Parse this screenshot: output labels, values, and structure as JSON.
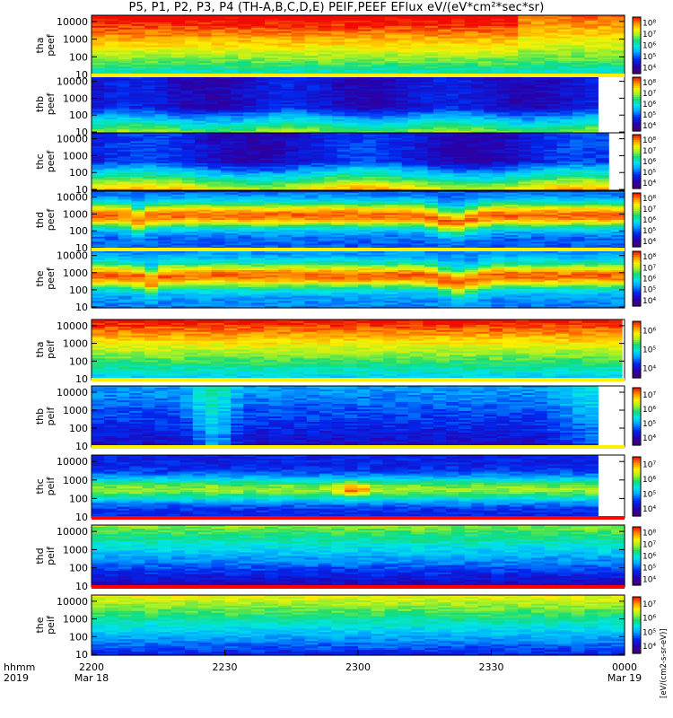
{
  "title": "P5, P1, P2, P3, P4 (TH-A,B,C,D,E) PEIF,PEEF EFlux eV/(eV*cm²*sec*sr)",
  "colorbar_unit_label": "[eV/(cm2-s-sr-eV)]",
  "chart_data": {
    "type": "heatmap",
    "x_axis": {
      "row_labels": [
        "hhmm",
        "2019"
      ],
      "ticks": [
        {
          "time": "2200",
          "date": "Mar 18"
        },
        {
          "time": "2230",
          "date": ""
        },
        {
          "time": "2300",
          "date": ""
        },
        {
          "time": "2330",
          "date": ""
        },
        {
          "time": "0000",
          "date": "Mar 19"
        }
      ],
      "range_utc": [
        "2019-03-18 22:00",
        "2019-03-19 00:00"
      ]
    },
    "y_scale": "log",
    "y_ticks": [
      "10",
      "100",
      "1000",
      "10000"
    ],
    "color_scale": "rainbow (purple-blue-cyan-green-yellow-red), log",
    "panels": [
      {
        "label": "tha\npeef",
        "cbar_ticks": [
          "10⁴",
          "10⁵",
          "10⁶",
          "10⁷",
          "10⁸"
        ],
        "data_end": 1.0,
        "pattern": "very high flux (red) above 3000 eV, yellow-green near 100 eV, cyan at 10 eV; drop after 2335"
      },
      {
        "label": "thb\npeef",
        "cbar_ticks": [
          "10⁴",
          "10⁵",
          "10⁶",
          "10⁷",
          "10⁸"
        ],
        "data_end": 0.95,
        "pattern": "blue-purple above 1000 eV, cyan/green/yellow below 100 eV"
      },
      {
        "label": "thc\npeef",
        "cbar_ticks": [
          "10⁴",
          "10⁵",
          "10⁶",
          "10⁷",
          "10⁸"
        ],
        "data_end": 0.97,
        "pattern": "blue above 1000 eV, cyan to yellow below 300 eV"
      },
      {
        "label": "thd\npeef",
        "cbar_ticks": [
          "10⁴",
          "10⁵",
          "10⁶",
          "10⁷",
          "10⁸"
        ],
        "data_end": 1.0,
        "pattern": "orange band 300-3000 eV with dips near 2212 and 2320, blue below 50 eV"
      },
      {
        "label": "the\npeef",
        "cbar_ticks": [
          "10⁴",
          "10⁵",
          "10⁶",
          "10⁷",
          "10⁸"
        ],
        "data_end": 1.0,
        "pattern": "orange band 300-3000 eV with dips near 2215 and 2320, cyan/blue below 50 eV"
      },
      {
        "label": "tha\npeif",
        "cbar_ticks": [
          "10⁴",
          "10⁵",
          "10⁶"
        ],
        "data_end": 0.995,
        "pattern": "red above 5000 eV, yellow-green mid, cyan below 30 eV"
      },
      {
        "label": "thb\npeif",
        "cbar_ticks": [
          "10⁴",
          "10⁵",
          "10⁶",
          "10⁷"
        ],
        "data_end": 0.95,
        "pattern": "mostly blue, cyan block at 2220-2230, green at end"
      },
      {
        "label": "thc\npeif",
        "cbar_ticks": [
          "10⁴",
          "10⁵",
          "10⁶",
          "10⁷"
        ],
        "data_end": 0.95,
        "pattern": "green-yellow band 200-2000 eV, red spot near 2310, blue above and below"
      },
      {
        "label": "thd\npeif",
        "cbar_ticks": [
          "10⁴",
          "10⁵",
          "10⁶",
          "10⁷",
          "10⁸"
        ],
        "data_end": 1.0,
        "pattern": "green above 3000 eV, cyan mid, dark blue/purple below 100 eV"
      },
      {
        "label": "the\npeif",
        "cbar_ticks": [
          "10⁴",
          "10⁵",
          "10⁶",
          "10⁷"
        ],
        "data_end": 1.0,
        "pattern": "green-yellow above 3000 eV, cyan mid, blue below 30 eV"
      }
    ]
  }
}
